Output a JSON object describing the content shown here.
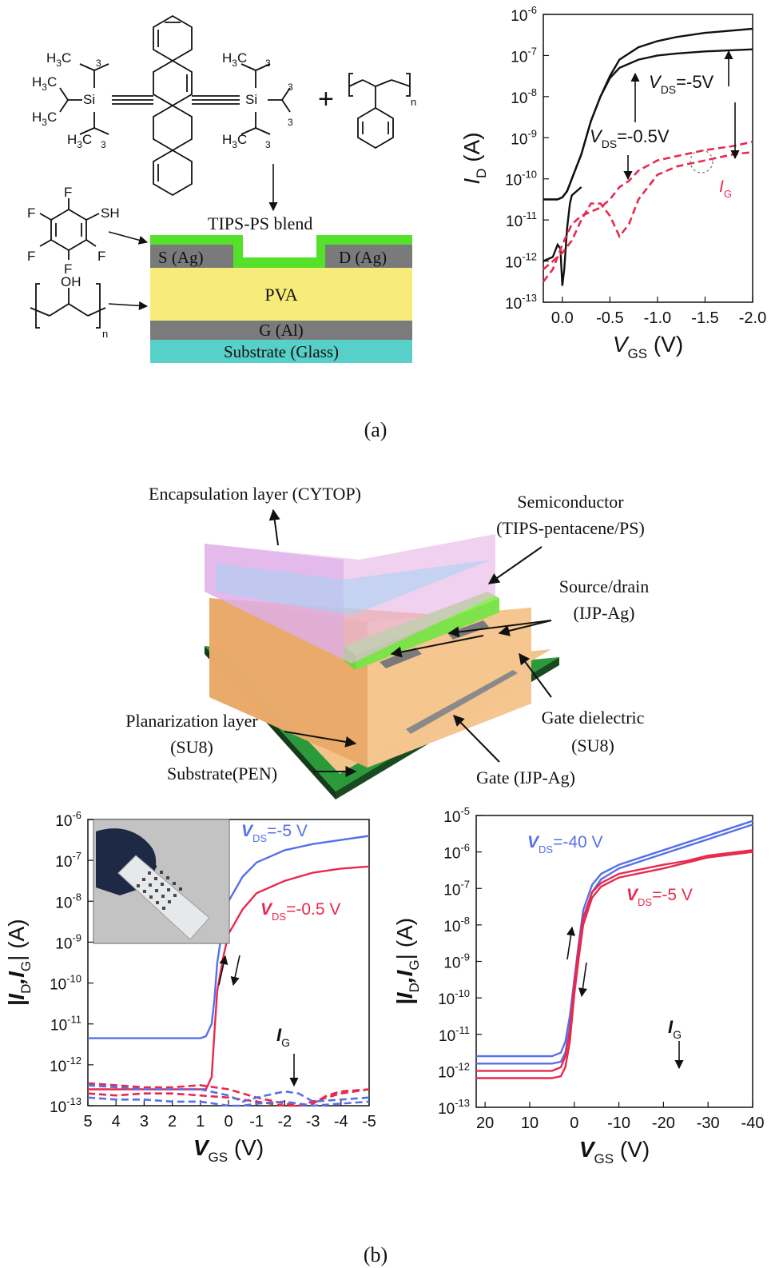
{
  "panel_a": {
    "caption": "(a)",
    "blend_label": "TIPS-PS blend",
    "layers": {
      "source": "S (Ag)",
      "drain": "D (Ag)",
      "dielectric": "PVA",
      "gate": "G (Al)",
      "substrate": "Substrate (Glass)"
    },
    "molecules": {
      "ch3": "CH",
      "h3c": "H",
      "c": "C",
      "si": "Si",
      "f": "F",
      "sh": "SH",
      "oh": "OH",
      "n": "n",
      "plus": "+",
      "three": "3"
    }
  },
  "panel_b": {
    "caption": "(b)",
    "labels": {
      "encapsulation": "Encapsulation layer (CYTOP)",
      "semiconductor_1": "Semiconductor",
      "semiconductor_2": "(TIPS-pentacene/PS)",
      "sd_1": "Source/drain",
      "sd_2": "(IJP-Ag)",
      "planarization_1": "Planarization layer",
      "planarization_2": "(SU8)",
      "substrate": "Substrate(PEN)",
      "gate_diel_1": "Gate dielectric",
      "gate_diel_2": "(SU8)",
      "gate": "Gate (IJP-Ag)"
    }
  },
  "colors": {
    "black": "#111111",
    "red": "#e8294e",
    "blue": "#5570e8",
    "green_layer": "#55e02a",
    "grey_electrode": "#7a7a7a",
    "pva": "#f7ec7a",
    "gate_al": "#7b7b7b",
    "glass": "#56d0c8"
  },
  "chart_data": [
    {
      "id": "a",
      "type": "line",
      "xlabel_main": "V",
      "xlabel_sub": "GS",
      "xlabel_unit": " (V)",
      "ylabel_main": "I",
      "ylabel_sub": "D",
      "ylabel_unit": " (A)",
      "xlim": [
        0.2,
        -2.0
      ],
      "ylim_log10": [
        -13,
        -6
      ],
      "xticks": [
        "0.0",
        "-0.5",
        "-1.0",
        "-1.5",
        "-2.0"
      ],
      "xtick_values": [
        0,
        -0.5,
        -1.0,
        -1.5,
        -2.0
      ],
      "ytick_exponents": [
        "-6",
        "-7",
        "-8",
        "-9",
        "-10",
        "-11",
        "-12",
        "-13"
      ],
      "ytick_base": "10",
      "annotations": [
        {
          "main": "V",
          "sub": "DS",
          "rest": "=-5V"
        },
        {
          "main": "V",
          "sub": "DS",
          "rest": "=-0.5V"
        },
        {
          "main": "I",
          "sub": "G",
          "rest": ""
        }
      ],
      "series": [
        {
          "style": "solid",
          "color": "black",
          "x": [
            0.2,
            0.1,
            0.05,
            0.0,
            -0.05,
            -0.1,
            -0.2,
            -0.3,
            -0.4,
            -0.5,
            -0.6,
            -0.8,
            -1.0,
            -1.2,
            -1.5,
            -2.0
          ],
          "log10y": [
            -10.5,
            -10.5,
            -10.5,
            -10.45,
            -10.3,
            -10.0,
            -9.4,
            -8.6,
            -8.0,
            -7.5,
            -7.1,
            -6.8,
            -6.65,
            -6.55,
            -6.45,
            -6.35
          ]
        },
        {
          "style": "solid",
          "color": "black",
          "x": [
            0.2,
            0.1,
            0.05,
            0.0,
            -0.05,
            -0.1,
            -0.2,
            -0.3,
            -0.4,
            -0.5,
            -0.6,
            -0.8,
            -1.0,
            -1.2,
            -1.5,
            -2.0
          ],
          "log10y": [
            -10.5,
            -10.5,
            -10.5,
            -10.45,
            -10.3,
            -10.0,
            -9.4,
            -8.6,
            -8.0,
            -7.55,
            -7.3,
            -7.1,
            -7.0,
            -6.95,
            -6.9,
            -6.85
          ]
        },
        {
          "style": "solid",
          "color": "black",
          "x": [
            0.2,
            0.1,
            0.05,
            0.02,
            0.0,
            -0.02,
            -0.05,
            -0.08,
            -0.1,
            -0.15,
            -0.2
          ],
          "log10y": [
            -12.0,
            -11.9,
            -11.6,
            -11.7,
            -12.6,
            -12.2,
            -11.2,
            -10.6,
            -10.4,
            -10.3,
            -10.2
          ]
        },
        {
          "style": "dashed",
          "color": "red",
          "x": [
            0.2,
            0.1,
            0.0,
            -0.1,
            -0.2,
            -0.3,
            -0.4,
            -0.5,
            -0.6,
            -0.7,
            -0.8,
            -1.0,
            -1.2,
            -1.5,
            -1.8,
            -2.0
          ],
          "log10y": [
            -12.5,
            -12.2,
            -11.6,
            -11.1,
            -10.9,
            -10.8,
            -10.7,
            -10.5,
            -10.2,
            -10.05,
            -9.8,
            -9.55,
            -9.45,
            -9.3,
            -9.2,
            -9.1
          ]
        },
        {
          "style": "dashed",
          "color": "red",
          "x": [
            0.2,
            0.1,
            0.0,
            -0.1,
            -0.2,
            -0.3,
            -0.4,
            -0.5,
            -0.6,
            -0.7,
            -0.8,
            -1.0,
            -1.2,
            -1.5,
            -1.8,
            -2.0
          ],
          "log10y": [
            -12.2,
            -12.0,
            -11.8,
            -11.5,
            -11.0,
            -10.6,
            -10.6,
            -10.9,
            -11.4,
            -11.1,
            -10.5,
            -9.9,
            -9.7,
            -9.55,
            -9.4,
            -9.35
          ]
        }
      ]
    },
    {
      "id": "b1",
      "type": "line",
      "xlabel_main": "V",
      "xlabel_sub": "GS",
      "xlabel_unit": " (V)",
      "ylabel_text": "|I",
      "ylabel_sub1": "D",
      "ylabel_mid": ",I",
      "ylabel_sub2": "G",
      "ylabel_unit": "| (A)",
      "xlim": [
        5,
        -5
      ],
      "ylim_log10": [
        -13,
        -6
      ],
      "xticks": [
        "5",
        "4",
        "3",
        "2",
        "1",
        "0",
        "-1",
        "-2",
        "-3",
        "-4",
        "-5"
      ],
      "xtick_values": [
        5,
        4,
        3,
        2,
        1,
        0,
        -1,
        -2,
        -3,
        -4,
        -5
      ],
      "ytick_exponents": [
        "-6",
        "-7",
        "-8",
        "-9",
        "-10",
        "-11",
        "-12",
        "-13"
      ],
      "ytick_base": "10",
      "annotations": [
        {
          "main": "V",
          "sub": "DS",
          "rest": "=-5 V",
          "color": "blue"
        },
        {
          "main": "V",
          "sub": "DS",
          "rest": "=-0.5 V",
          "color": "red"
        },
        {
          "main": "I",
          "sub": "G",
          "rest": "",
          "color": "black"
        }
      ],
      "series": [
        {
          "style": "solid",
          "color": "blue",
          "x": [
            5,
            3,
            1.5,
            1.0,
            0.8,
            0.6,
            0.5,
            0.4,
            0.2,
            0,
            -0.5,
            -1,
            -2,
            -3,
            -4,
            -5
          ],
          "log10y": [
            -11.35,
            -11.35,
            -11.35,
            -11.35,
            -11.3,
            -11.0,
            -10.4,
            -9.5,
            -8.6,
            -8.0,
            -7.4,
            -7.05,
            -6.75,
            -6.6,
            -6.5,
            -6.4
          ]
        },
        {
          "style": "solid",
          "color": "red",
          "x": [
            5,
            3,
            1.5,
            1.0,
            0.8,
            0.6,
            0.5,
            0.4,
            0.2,
            0,
            -0.5,
            -1,
            -2,
            -3,
            -4,
            -5
          ],
          "log10y": [
            -12.6,
            -12.6,
            -12.6,
            -12.6,
            -12.6,
            -12.3,
            -11.2,
            -10.2,
            -9.4,
            -8.8,
            -8.2,
            -7.8,
            -7.5,
            -7.3,
            -7.2,
            -7.15
          ]
        },
        {
          "style": "dashed",
          "color": "red",
          "x": [
            5,
            4,
            3,
            2,
            1,
            0,
            -1,
            -2,
            -2.5,
            -3,
            -3.5,
            -4,
            -5
          ],
          "log10y": [
            -12.45,
            -12.5,
            -12.55,
            -12.55,
            -12.5,
            -12.6,
            -12.8,
            -12.95,
            -13.0,
            -12.9,
            -12.8,
            -12.7,
            -12.6
          ]
        },
        {
          "style": "dashed",
          "color": "red",
          "x": [
            5,
            4,
            3,
            2,
            1,
            0,
            -1,
            -2,
            -2.5,
            -3,
            -3.5,
            -4,
            -5
          ],
          "log10y": [
            -12.7,
            -12.75,
            -12.7,
            -12.7,
            -12.75,
            -12.8,
            -12.9,
            -13.0,
            -13.0,
            -12.95,
            -12.75,
            -12.65,
            -12.6
          ]
        },
        {
          "style": "dashed",
          "color": "blue",
          "x": [
            5,
            4,
            3,
            2,
            1,
            0,
            -0.5,
            -1,
            -2,
            -2.5,
            -3,
            -4,
            -5
          ],
          "log10y": [
            -12.5,
            -12.55,
            -12.6,
            -12.6,
            -12.6,
            -12.75,
            -12.9,
            -12.8,
            -12.65,
            -12.7,
            -12.9,
            -12.85,
            -12.8
          ]
        },
        {
          "style": "dashed",
          "color": "blue",
          "x": [
            5,
            4,
            3,
            2,
            1,
            0,
            -0.5,
            -1,
            -2,
            -3,
            -4,
            -5
          ],
          "log10y": [
            -12.8,
            -12.85,
            -12.85,
            -12.9,
            -12.9,
            -13.0,
            -13.0,
            -12.95,
            -12.9,
            -13.0,
            -12.95,
            -12.9
          ]
        }
      ]
    },
    {
      "id": "b2",
      "type": "line",
      "xlabel_main": "V",
      "xlabel_sub": "GS",
      "xlabel_unit": " (V)",
      "ylabel_text": "|I",
      "ylabel_sub1": "D",
      "ylabel_mid": ",I",
      "ylabel_sub2": "G",
      "ylabel_unit": "| (A)",
      "xlim": [
        22,
        -40
      ],
      "ylim_log10": [
        -13,
        -5
      ],
      "xticks": [
        "20",
        "10",
        "0",
        "-10",
        "-20",
        "-30",
        "-40"
      ],
      "xtick_values": [
        20,
        10,
        0,
        -10,
        -20,
        -30,
        -40
      ],
      "ytick_exponents": [
        "-5",
        "-6",
        "-7",
        "-8",
        "-9",
        "-10",
        "-11",
        "-12",
        "-13"
      ],
      "ytick_base": "10",
      "annotations": [
        {
          "main": "V",
          "sub": "DS",
          "rest": "=-40 V",
          "color": "blue"
        },
        {
          "main": "V",
          "sub": "DS",
          "rest": "=-5 V",
          "color": "red"
        },
        {
          "main": "I",
          "sub": "G",
          "rest": "",
          "color": "black"
        }
      ],
      "series": [
        {
          "style": "solid",
          "color": "blue",
          "x": [
            22,
            10,
            5,
            3,
            2,
            1,
            0,
            -1,
            -2,
            -4,
            -6,
            -10,
            -20,
            -30,
            -40
          ],
          "log10y": [
            -11.6,
            -11.6,
            -11.6,
            -11.5,
            -11.2,
            -10.5,
            -9.5,
            -8.5,
            -7.6,
            -6.9,
            -6.6,
            -6.35,
            -5.95,
            -5.55,
            -5.15
          ]
        },
        {
          "style": "solid",
          "color": "blue",
          "x": [
            22,
            10,
            5,
            3,
            2,
            1,
            0,
            -1,
            -2,
            -4,
            -6,
            -10,
            -20,
            -30,
            -40
          ],
          "log10y": [
            -11.8,
            -11.8,
            -11.8,
            -11.75,
            -11.5,
            -10.8,
            -9.8,
            -8.8,
            -7.9,
            -7.1,
            -6.75,
            -6.45,
            -6.05,
            -5.65,
            -5.25
          ]
        },
        {
          "style": "solid",
          "color": "red",
          "x": [
            22,
            10,
            5,
            3,
            2,
            1,
            0,
            -1,
            -2,
            -4,
            -6,
            -10,
            -20,
            -25,
            -30,
            -40
          ],
          "log10y": [
            -12.0,
            -12.0,
            -12.0,
            -11.9,
            -11.6,
            -10.9,
            -9.6,
            -8.6,
            -7.8,
            -7.1,
            -6.85,
            -6.6,
            -6.35,
            -6.25,
            -6.1,
            -5.95
          ]
        },
        {
          "style": "solid",
          "color": "red",
          "x": [
            22,
            10,
            5,
            3,
            2,
            1,
            0,
            -1,
            -2,
            -4,
            -6,
            -10,
            -20,
            -25,
            -30,
            -40
          ],
          "log10y": [
            -12.2,
            -12.2,
            -12.2,
            -12.15,
            -11.9,
            -11.2,
            -9.9,
            -8.9,
            -8.0,
            -7.25,
            -6.95,
            -6.7,
            -6.45,
            -6.3,
            -6.15,
            -6.0
          ]
        }
      ]
    }
  ]
}
